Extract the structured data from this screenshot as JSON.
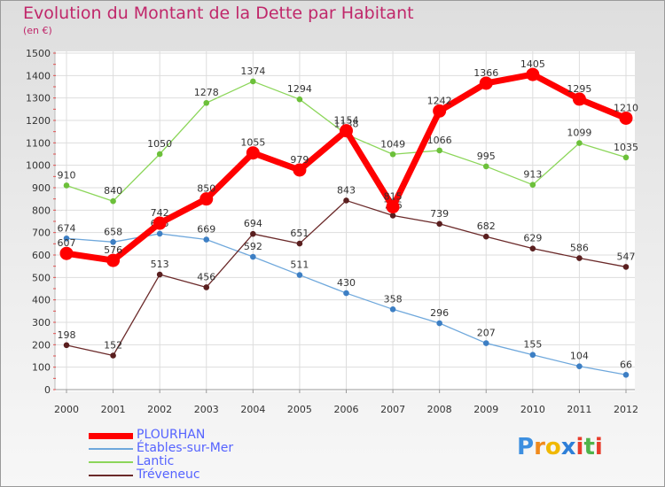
{
  "header": {
    "title": "Evolution du Montant de la Dette par Habitant",
    "unit": "(en €)"
  },
  "brand": {
    "letters": [
      "P",
      "r",
      "o",
      "x",
      "i",
      "t",
      "i"
    ],
    "colors": [
      "#3d8fe0",
      "#f08a1c",
      "#f0b800",
      "#2e7fd8",
      "#e83c2c",
      "#4fb34a",
      "#e83c2c"
    ]
  },
  "chart_data": {
    "type": "line",
    "x": [
      "2000",
      "2001",
      "2002",
      "2003",
      "2004",
      "2005",
      "2006",
      "2007",
      "2008",
      "2009",
      "2010",
      "2011",
      "2012"
    ],
    "ylim": [
      0,
      1500
    ],
    "yticks": [
      0,
      100,
      200,
      300,
      400,
      500,
      600,
      700,
      800,
      900,
      1000,
      1100,
      1200,
      1300,
      1400,
      1500
    ],
    "grid": true,
    "legend_position": "bottom-left",
    "series": [
      {
        "name": "PLOURHAN",
        "color": "#ff0000",
        "values": [
          607,
          576,
          742,
          850,
          1055,
          979,
          1154,
          815,
          1242,
          1366,
          1405,
          1295,
          1210
        ]
      },
      {
        "name": "Étables-sur-Mer",
        "color": "#6fa8dc",
        "values": [
          674,
          658,
          695,
          669,
          592,
          511,
          430,
          358,
          296,
          207,
          155,
          104,
          66
        ]
      },
      {
        "name": "Lantic",
        "color": "#8cd65a",
        "values": [
          910,
          840,
          1050,
          1278,
          1374,
          1294,
          1138,
          1049,
          1066,
          995,
          913,
          1099,
          1035
        ]
      },
      {
        "name": "Tréveneuc",
        "color": "#6b2a2a",
        "values": [
          198,
          152,
          513,
          456,
          694,
          651,
          843,
          776,
          739,
          682,
          629,
          586,
          547
        ]
      }
    ]
  }
}
